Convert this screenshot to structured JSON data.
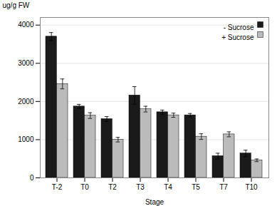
{
  "chart_data": {
    "type": "bar",
    "categories": [
      "T-2",
      "T0",
      "T2",
      "T3",
      "T4",
      "T5",
      "T7",
      "T10"
    ],
    "series": [
      {
        "name": "- Sucrose",
        "color": "#1a1a1a",
        "values": [
          3700,
          1870,
          1540,
          2160,
          1720,
          1640,
          570,
          640
        ],
        "errors": [
          105,
          55,
          65,
          230,
          55,
          45,
          75,
          85
        ]
      },
      {
        "name": "+ Sucrose",
        "color": "#bbbbbb",
        "values": [
          2460,
          1630,
          1000,
          1800,
          1640,
          1080,
          1140,
          460
        ],
        "errors": [
          130,
          75,
          60,
          75,
          55,
          75,
          65,
          35
        ]
      }
    ],
    "xlabel": "Stage",
    "ylabel": "ug/g FW",
    "ylim": [
      0,
      4200
    ],
    "yticks": [
      0,
      1000,
      2000,
      3000,
      4000
    ],
    "grid": true,
    "legend": "upper right"
  }
}
